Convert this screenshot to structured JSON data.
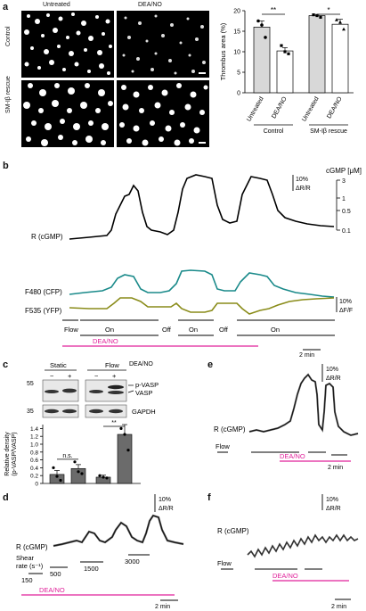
{
  "panels": {
    "a": "a",
    "b": "b",
    "c": "c",
    "d": "d",
    "e": "e",
    "f": "f"
  },
  "panel_a": {
    "columns": [
      "Untreated",
      "DEA/NO"
    ],
    "rows": [
      "Control",
      "SM-Iβ rescue"
    ]
  },
  "chart_data": [
    {
      "type": "bar",
      "panel": "a",
      "ylabel": "Thrombus area (%)",
      "ylim": [
        0,
        20
      ],
      "yticks": [
        0,
        5,
        10,
        15,
        20
      ],
      "categories": [
        "Untreated",
        "DEA/NO",
        "Untreated",
        "DEA/NO"
      ],
      "groups": [
        "Control",
        "SM-Iβ rescue"
      ],
      "values": [
        16.0,
        10.2,
        18.8,
        16.7
      ],
      "errors": [
        1.5,
        0.8,
        0.3,
        1.2
      ],
      "points": [
        [
          17.5,
          16.5,
          13.5
        ],
        [
          11.5,
          10.0,
          9.5
        ],
        [
          19.0,
          18.8,
          18.4
        ],
        [
          17.8,
          17.2,
          15.5
        ]
      ],
      "significance": [
        {
          "pair": [
            0,
            1
          ],
          "label": "**"
        },
        {
          "pair": [
            2,
            3
          ],
          "label": "*"
        }
      ]
    },
    {
      "type": "bar",
      "panel": "c",
      "ylabel": "Relative density\n(p-VASP/VASP)",
      "ylim": [
        0,
        1.5
      ],
      "yticks": [
        "0",
        "0.2",
        "0.4",
        "0.6",
        "0.8",
        "1.0",
        "1.2",
        "1.4"
      ],
      "categories": [
        "Static −",
        "Static +",
        "Flow −",
        "Flow +"
      ],
      "values": [
        0.23,
        0.38,
        0.16,
        1.25
      ],
      "errors": [
        0.1,
        0.1,
        0.05,
        0.25
      ],
      "points": [
        [
          0.4,
          0.18,
          0.08
        ],
        [
          0.55,
          0.3,
          0.25
        ],
        [
          0.2,
          0.16,
          0.14
        ],
        [
          1.4,
          1.25,
          0.85
        ]
      ],
      "significance": [
        {
          "pair": [
            0,
            1
          ],
          "label": "n.s."
        },
        {
          "pair": [
            2,
            3
          ],
          "label": "**"
        }
      ]
    }
  ],
  "panel_b": {
    "trace_labels": [
      "R (cGMP)",
      "F480 (CFP)",
      "F535 (YFP)"
    ],
    "cgmp_axis_title": "cGMP [μM]",
    "cgmp_ticks": [
      "3",
      "1",
      "0.5",
      "0.1"
    ],
    "scale_ratio": [
      "10%",
      "ΔR/R"
    ],
    "scale_fret": [
      "10%",
      "ΔF/F"
    ],
    "flow_states": [
      "Flow",
      "On",
      "Off",
      "On",
      "Off",
      "On"
    ],
    "drug": "DEA/NO",
    "time_scale": "2 min"
  },
  "panel_c": {
    "headers": [
      "Static",
      "Flow"
    ],
    "signs": [
      "−",
      "+",
      "−",
      "+"
    ],
    "drug": "DEA/NO",
    "mw": [
      "55",
      "35"
    ],
    "band_labels": [
      "p-VASP",
      "VASP",
      "GAPDH"
    ]
  },
  "panel_d": {
    "trace_label": "R (cGMP)",
    "scale": [
      "10%",
      "ΔR/R"
    ],
    "shear_label": [
      "Shear",
      "rate (s⁻¹)"
    ],
    "shear_values": [
      "150",
      "500",
      "1500",
      "3000"
    ],
    "drug": "DEA/NO",
    "time_scale": "2 min"
  },
  "panel_e": {
    "trace_label": "R (cGMP)",
    "scale": [
      "10%",
      "ΔR/R"
    ],
    "flow": "Flow",
    "drug": "DEA/NO",
    "time_scale": "2 min"
  },
  "panel_f": {
    "trace_label": "R (cGMP)",
    "scale": [
      "10%",
      "ΔR/R"
    ],
    "flow": "Flow",
    "drug": "DEA/NO",
    "time_scale": "2 min"
  },
  "colors": {
    "teal": "#1a8a8a",
    "olive": "#8a8c1a",
    "magenta": "#e0209a",
    "bar_light": "#f2f2f2",
    "bar_dark": "#6b6b6b"
  }
}
